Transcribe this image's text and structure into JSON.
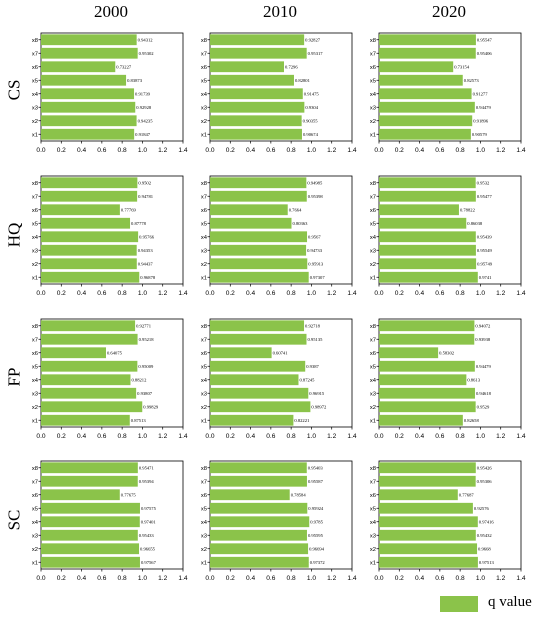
{
  "columns": [
    "2000",
    "2010",
    "2020"
  ],
  "rows": [
    "CS",
    "HQ",
    "FP",
    "SC"
  ],
  "legend_label": "q value",
  "bar_color": "#8bc34a",
  "chart_data": {
    "type": "bar",
    "orientation": "horizontal",
    "categories": [
      "x1",
      "x2",
      "x3",
      "x4",
      "x5",
      "x6",
      "x7",
      "x8"
    ],
    "xlim": [
      0,
      1.4
    ],
    "xticks": [
      "0.0",
      "0.2",
      "0.4",
      "0.6",
      "0.8",
      "1.0",
      "1.2",
      "1.4"
    ],
    "legend": "bottom-right",
    "panels": [
      {
        "row": "CS",
        "column": "2000",
        "values": [
          0.91847,
          0.94235,
          0.92928,
          0.91739,
          0.83873,
          0.73227,
          0.95302,
          0.94312
        ],
        "labels": [
          "0.91847",
          "0.94235",
          "0.92928",
          "0.91739",
          "0.83873",
          "0.73227",
          "0.95302",
          "0.94312"
        ]
      },
      {
        "row": "CS",
        "column": "2010",
        "values": [
          0.90674,
          0.90355,
          0.9304,
          0.91475,
          0.82801,
          0.7296,
          0.95317,
          0.92827
        ],
        "labels": [
          "0.90674",
          "0.90355",
          "0.9304",
          "0.91475",
          "0.82801",
          "0.7296",
          "0.95317",
          "0.92827"
        ]
      },
      {
        "row": "CS",
        "column": "2020",
        "values": [
          0.90579,
          0.91896,
          0.94479,
          0.91277,
          0.82573,
          0.73154,
          0.95406,
          0.95547
        ],
        "labels": [
          "0.90579",
          "0.91896",
          "0.94479",
          "0.91277",
          "0.82573",
          "0.73154",
          "0.95406",
          "0.95547"
        ]
      },
      {
        "row": "HQ",
        "column": "2000",
        "values": [
          0.96878,
          0.94437,
          0.94353,
          0.95766,
          0.87778,
          0.77769,
          0.94781,
          0.9502
        ],
        "labels": [
          "0.96878",
          "0.94437",
          "0.94353",
          "0.95766",
          "0.87778",
          "0.77769",
          "0.94781",
          "0.9502"
        ]
      },
      {
        "row": "HQ",
        "column": "2010",
        "values": [
          0.97307,
          0.95913,
          0.94733,
          0.9567,
          0.80363,
          0.7664,
          0.95398,
          0.94985
        ],
        "labels": [
          "0.97307",
          "0.95913",
          "0.94733",
          "0.9567",
          "0.80363",
          "0.7664",
          "0.95398",
          "0.94985"
        ]
      },
      {
        "row": "HQ",
        "column": "2020",
        "values": [
          0.9741,
          0.95749,
          0.95549,
          0.95439,
          0.86038,
          0.78822,
          0.95477,
          0.9532
        ],
        "labels": [
          "0.9741",
          "0.95749",
          "0.95549",
          "0.95439",
          "0.86038",
          "0.78822",
          "0.95477",
          "0.9532"
        ]
      },
      {
        "row": "FP",
        "column": "2000",
        "values": [
          0.87513,
          0.99829,
          0.93807,
          0.88212,
          0.95009,
          0.64075,
          0.95218,
          0.92771
        ],
        "labels": [
          "0.87513",
          "0.99829",
          "0.93807",
          "0.88212",
          "0.95009",
          "0.64075",
          "0.95218",
          "0.92771"
        ]
      },
      {
        "row": "FP",
        "column": "2010",
        "values": [
          0.82221,
          0.98972,
          0.96915,
          0.87245,
          0.9387,
          0.60741,
          0.95135,
          0.92718
        ],
        "labels": [
          "0.82221",
          "0.98972",
          "0.96915",
          "0.87245",
          "0.9387",
          "0.60741",
          "0.95135",
          "0.92718"
        ]
      },
      {
        "row": "FP",
        "column": "2020",
        "values": [
          0.82658,
          0.9529,
          0.94618,
          0.8613,
          0.94479,
          0.58302,
          0.93938,
          0.94072
        ],
        "labels": [
          "0.82658",
          "0.9529",
          "0.94618",
          "0.8613",
          "0.94479",
          "0.58302",
          "0.93938",
          "0.94072"
        ]
      },
      {
        "row": "SC",
        "column": "2000",
        "values": [
          0.97567,
          0.96655,
          0.95433,
          0.97401,
          0.97575,
          0.77675,
          0.95394,
          0.95471
        ],
        "labels": [
          "0.97567",
          "0.96655",
          "0.95433",
          "0.97401",
          "0.97575",
          "0.77675",
          "0.95394",
          "0.95471"
        ]
      },
      {
        "row": "SC",
        "column": "2010",
        "values": [
          0.97372,
          0.96694,
          0.95595,
          0.9785,
          0.95924,
          0.78584,
          0.95587,
          0.95403
        ],
        "labels": [
          "0.97372",
          "0.96694",
          "0.95595",
          "0.9785",
          "0.95924",
          "0.78584",
          "0.95587",
          "0.95403"
        ]
      },
      {
        "row": "SC",
        "column": "2020",
        "values": [
          0.97513,
          0.9668,
          0.95432,
          0.97416,
          0.92576,
          0.77687,
          0.95306,
          0.95426
        ],
        "labels": [
          "0.97513",
          "0.9668",
          "0.95432",
          "0.97416",
          "0.92576",
          "0.77687",
          "0.95306",
          "0.95426"
        ]
      }
    ]
  }
}
